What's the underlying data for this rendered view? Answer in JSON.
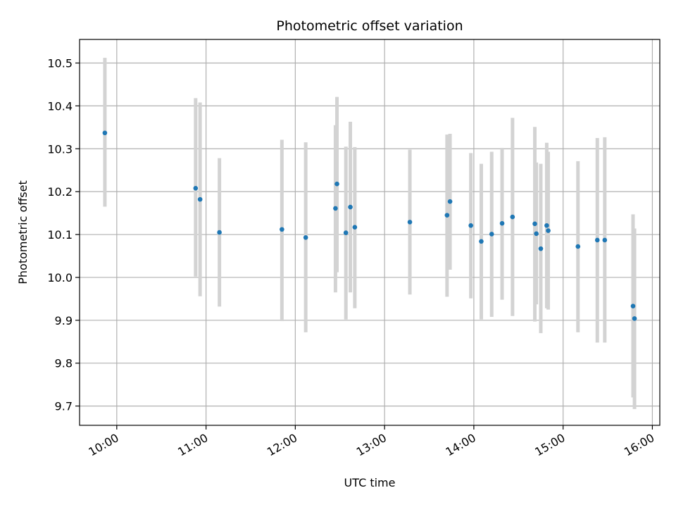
{
  "chart_data": {
    "type": "scatter",
    "title": "Photometric offset variation",
    "xlabel": "UTC time",
    "ylabel": "Photometric offset",
    "xlim": [
      "09:35",
      "16:05"
    ],
    "ylim": [
      9.655,
      10.555
    ],
    "x_ticks": [
      "10:00",
      "11:00",
      "12:00",
      "13:00",
      "14:00",
      "15:00",
      "16:00"
    ],
    "y_ticks": [
      9.7,
      9.8,
      9.9,
      10.0,
      10.1,
      10.2,
      10.3,
      10.4,
      10.5
    ],
    "y_tick_labels": [
      "9.7",
      "9.8",
      "9.9",
      "10.0",
      "10.1",
      "10.2",
      "10.3",
      "10.4",
      "10.5"
    ],
    "grid": true,
    "marker_color": "#1f77b4",
    "errorbar_color": "#d3d3d3",
    "points": [
      {
        "time": "09:52",
        "y": 10.337,
        "err_low": 10.165,
        "err_high": 10.512
      },
      {
        "time": "10:53",
        "y": 10.208,
        "err_low": 10.002,
        "err_high": 10.418
      },
      {
        "time": "10:56",
        "y": 10.182,
        "err_low": 9.956,
        "err_high": 10.408
      },
      {
        "time": "11:09",
        "y": 10.105,
        "err_low": 9.932,
        "err_high": 10.278
      },
      {
        "time": "11:51",
        "y": 10.112,
        "err_low": 9.898,
        "err_high": 10.321
      },
      {
        "time": "12:07",
        "y": 10.093,
        "err_low": 9.872,
        "err_high": 10.315
      },
      {
        "time": "12:27",
        "y": 10.161,
        "err_low": 9.965,
        "err_high": 10.355
      },
      {
        "time": "12:28",
        "y": 10.218,
        "err_low": 10.012,
        "err_high": 10.421
      },
      {
        "time": "12:34",
        "y": 10.104,
        "err_low": 9.902,
        "err_high": 10.305
      },
      {
        "time": "12:37",
        "y": 10.164,
        "err_low": 9.965,
        "err_high": 10.363
      },
      {
        "time": "12:40",
        "y": 10.117,
        "err_low": 9.928,
        "err_high": 10.304
      },
      {
        "time": "13:17",
        "y": 10.129,
        "err_low": 9.96,
        "err_high": 10.298
      },
      {
        "time": "13:42",
        "y": 10.145,
        "err_low": 9.955,
        "err_high": 10.333
      },
      {
        "time": "13:44",
        "y": 10.177,
        "err_low": 10.018,
        "err_high": 10.335
      },
      {
        "time": "13:58",
        "y": 10.121,
        "err_low": 9.951,
        "err_high": 10.29
      },
      {
        "time": "14:05",
        "y": 10.084,
        "err_low": 9.902,
        "err_high": 10.265
      },
      {
        "time": "14:12",
        "y": 10.101,
        "err_low": 9.908,
        "err_high": 10.293
      },
      {
        "time": "14:19",
        "y": 10.126,
        "err_low": 9.948,
        "err_high": 10.302
      },
      {
        "time": "14:26",
        "y": 10.141,
        "err_low": 9.91,
        "err_high": 10.372
      },
      {
        "time": "14:41",
        "y": 10.125,
        "err_low": 9.897,
        "err_high": 10.351
      },
      {
        "time": "14:42",
        "y": 10.102,
        "err_low": 9.937,
        "err_high": 10.268
      },
      {
        "time": "14:45",
        "y": 10.067,
        "err_low": 9.87,
        "err_high": 10.265
      },
      {
        "time": "14:49",
        "y": 10.121,
        "err_low": 9.928,
        "err_high": 10.314
      },
      {
        "time": "14:50",
        "y": 10.109,
        "err_low": 9.925,
        "err_high": 10.293
      },
      {
        "time": "15:10",
        "y": 10.072,
        "err_low": 9.872,
        "err_high": 10.271
      },
      {
        "time": "15:23",
        "y": 10.087,
        "err_low": 9.848,
        "err_high": 10.325
      },
      {
        "time": "15:28",
        "y": 10.087,
        "err_low": 9.848,
        "err_high": 10.327
      },
      {
        "time": "15:47",
        "y": 9.933,
        "err_low": 9.72,
        "err_high": 10.147
      },
      {
        "time": "15:48",
        "y": 9.904,
        "err_low": 9.693,
        "err_high": 10.114
      }
    ]
  }
}
